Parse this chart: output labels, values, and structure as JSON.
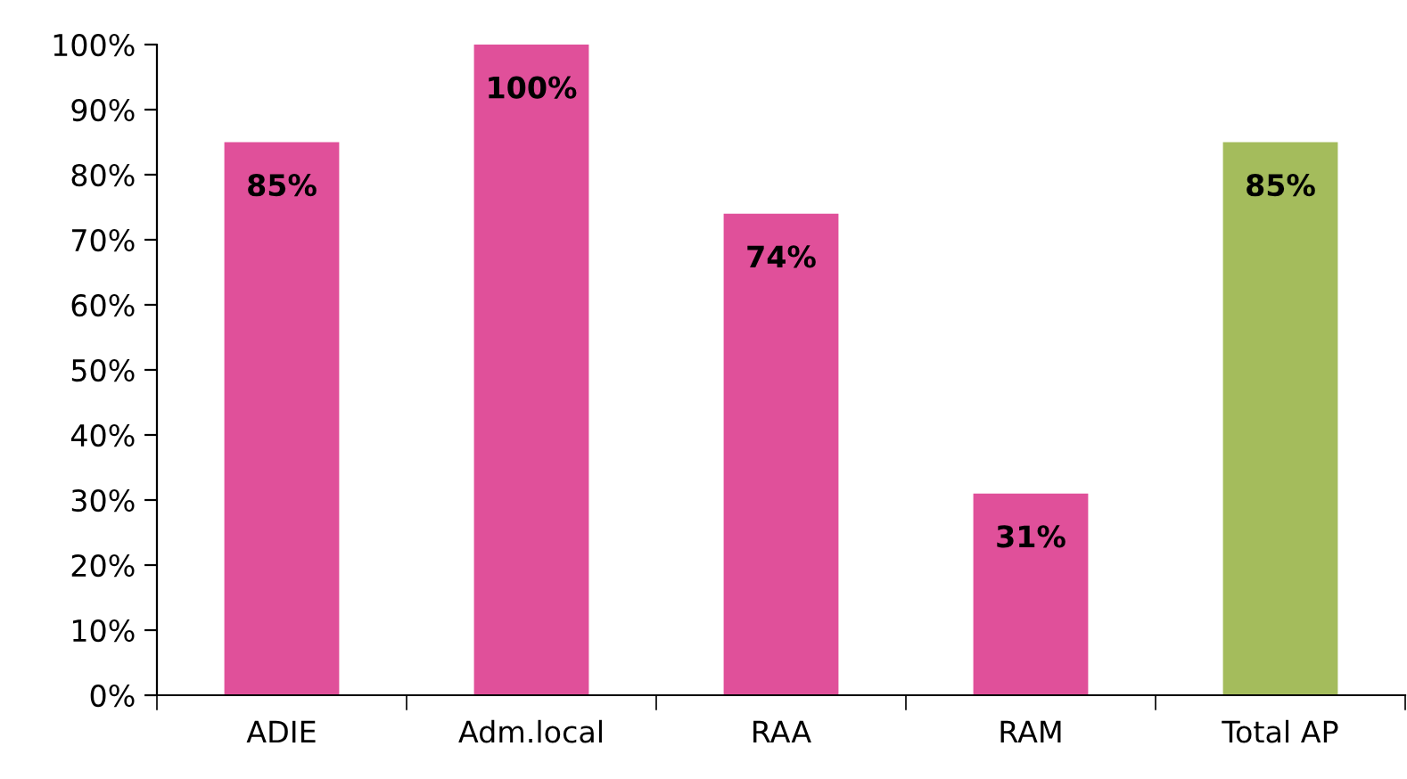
{
  "chart_data": {
    "type": "bar",
    "categories": [
      "ADIE",
      "Adm.local",
      "RAA",
      "RAM",
      "Total AP"
    ],
    "values": [
      85,
      100,
      74,
      31,
      85
    ],
    "colors": [
      "#e0509a",
      "#e0509a",
      "#e0509a",
      "#e0509a",
      "#a4bc5c"
    ],
    "value_labels": [
      "85%",
      "100%",
      "74%",
      "31%",
      "85%"
    ],
    "ylim": [
      0,
      100
    ],
    "yticks": [
      {
        "value": 0,
        "label": "0%"
      },
      {
        "value": 10,
        "label": "10%"
      },
      {
        "value": 20,
        "label": "20%"
      },
      {
        "value": 30,
        "label": "30%"
      },
      {
        "value": 40,
        "label": "40%"
      },
      {
        "value": 50,
        "label": "50%"
      },
      {
        "value": 60,
        "label": "60%"
      },
      {
        "value": 70,
        "label": "70%"
      },
      {
        "value": 80,
        "label": "80%"
      },
      {
        "value": 90,
        "label": "90%"
      },
      {
        "value": 100,
        "label": "100%"
      }
    ],
    "grid": false,
    "legend": false
  }
}
